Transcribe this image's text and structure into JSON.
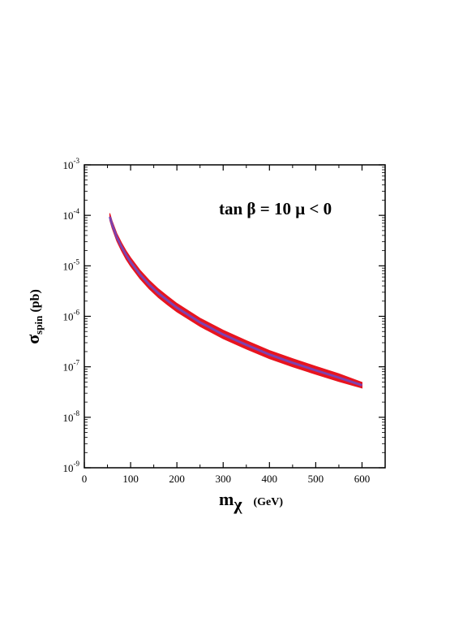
{
  "chart_data": {
    "type": "area",
    "xlabel": {
      "main": "m",
      "symbol": "χ",
      "unit": "(GeV)"
    },
    "ylabel": {
      "symbol": "σ",
      "subscript": "spin",
      "unit": "(pb)"
    },
    "annotation": "tan β = 10  μ < 0",
    "xlim": [
      0,
      650
    ],
    "ylim": [
      1e-09,
      0.001
    ],
    "yscale": "log",
    "x_ticks": [
      "0",
      "100",
      "200",
      "300",
      "400",
      "500",
      "600"
    ],
    "y_ticks": [
      {
        "base": "10",
        "exp": "-9"
      },
      {
        "base": "10",
        "exp": "-8"
      },
      {
        "base": "10",
        "exp": "-7"
      },
      {
        "base": "10",
        "exp": "-6"
      },
      {
        "base": "10",
        "exp": "-5"
      },
      {
        "base": "10",
        "exp": "-4"
      },
      {
        "base": "10",
        "exp": "-3"
      }
    ],
    "grid": false,
    "series": [
      {
        "x": [
          55,
          60,
          70,
          80,
          90,
          100,
          120,
          140,
          160,
          180,
          200,
          250,
          300,
          350,
          400,
          450,
          500,
          550,
          600
        ],
        "y_upper": [
          0.00011,
          7.8e-05,
          4.4e-05,
          2.9e-05,
          2e-05,
          1.45e-05,
          8.3e-06,
          5.2e-06,
          3.5e-06,
          2.5e-06,
          1.8e-06,
          9.2e-07,
          5.3e-07,
          3.3e-07,
          2.1e-07,
          1.45e-07,
          1.02e-07,
          7.3e-08,
          4.9e-08
        ],
        "y_lower": [
          8e-05,
          5.6e-05,
          3.1e-05,
          2e-05,
          1.35e-05,
          9.8e-06,
          5.6e-06,
          3.5e-06,
          2.35e-06,
          1.68e-06,
          1.22e-06,
          6.3e-07,
          3.6e-07,
          2.25e-07,
          1.45e-07,
          1e-07,
          7.1e-08,
          5.1e-08,
          3.8e-08
        ]
      }
    ],
    "colors": {
      "band_edge": "#e8141e",
      "band_core": "#6a4ac8",
      "axis": "#000000"
    }
  }
}
